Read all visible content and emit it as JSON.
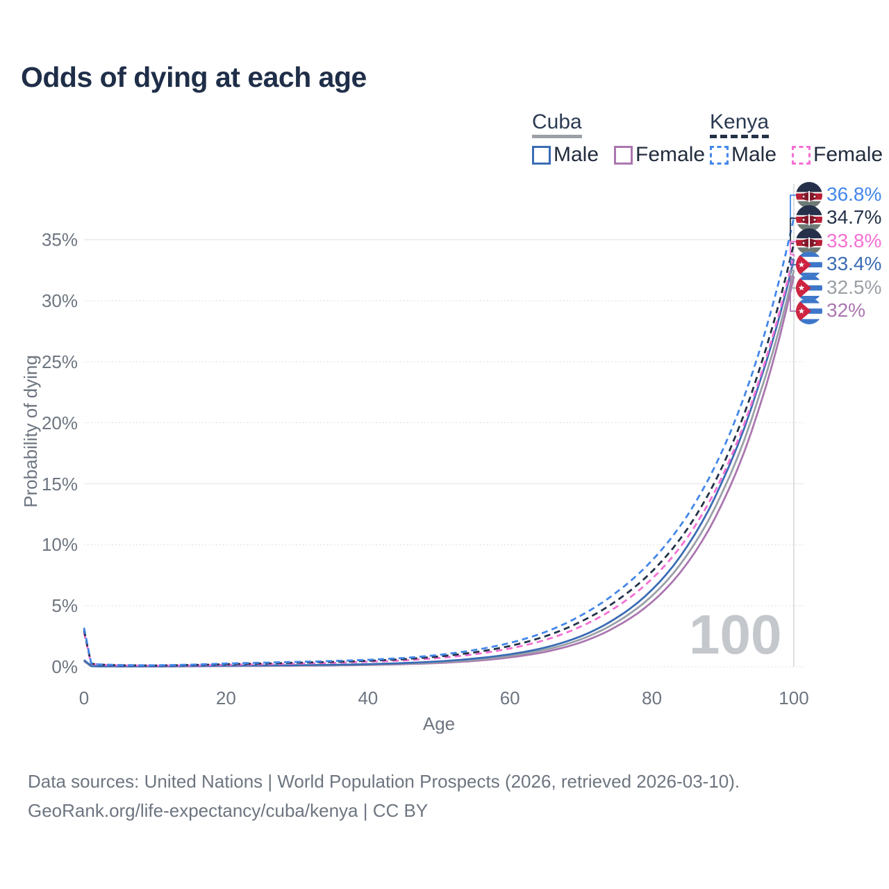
{
  "title": "Odds of dying at each age",
  "watermark_hover_age": "100",
  "colors": {
    "title": "#1f2e48",
    "axis_text": "#6d7580",
    "grid_dotted": "#cfd2d6",
    "grid_solid": "#e9ebee",
    "hover_line": "#d3d5d9",
    "watermark": "#c4c7cc"
  },
  "legend": {
    "groups": [
      {
        "label": "Cuba",
        "line_style": "solid",
        "underline_color": "#9aa0a6",
        "items": [
          {
            "label": "Male",
            "color": "#3a6cb4"
          },
          {
            "label": "Female",
            "color": "#ab76b0"
          }
        ]
      },
      {
        "label": "Kenya",
        "line_style": "dashed",
        "underline_color": "#243247",
        "items": [
          {
            "label": "Male",
            "color": "#4387e9"
          },
          {
            "label": "Female",
            "color": "#f56fd4"
          }
        ]
      }
    ]
  },
  "footer": {
    "line1": "Data sources: United Nations | World Population Prospects (2026, retrieved 2026-03-10).",
    "line2": "GeoRank.org/life-expectancy/cuba/kenya | CC BY"
  },
  "chart_data": {
    "type": "line",
    "title": "Odds of dying at each age",
    "xlabel": "Age",
    "ylabel": "Probability of dying",
    "xlim": [
      0,
      100
    ],
    "ylim_percent": [
      0,
      38
    ],
    "x_ticks": [
      0,
      20,
      40,
      60,
      80,
      100
    ],
    "y_tick_labels": [
      "0%",
      "5%",
      "10%",
      "15%",
      "20%",
      "25%",
      "30%",
      "35%"
    ],
    "grid": "horizontal",
    "legend_position": "top-right",
    "hover_age": 100,
    "ages": [
      0,
      1,
      2,
      5,
      10,
      15,
      20,
      25,
      30,
      35,
      40,
      45,
      50,
      55,
      60,
      65,
      70,
      75,
      80,
      85,
      90,
      95,
      100
    ],
    "series": [
      {
        "name": "Kenya Male",
        "country": "Kenya",
        "sex": "Male",
        "dashed": true,
        "flag": "kenya",
        "color": "#4387e9",
        "end_label": "36.8%",
        "end_value_percent": 36.8,
        "values_percent": [
          3.2,
          0.3,
          0.2,
          0.14,
          0.12,
          0.17,
          0.27,
          0.33,
          0.4,
          0.47,
          0.57,
          0.72,
          0.97,
          1.37,
          1.95,
          2.85,
          4.2,
          6.1,
          8.7,
          12.4,
          17.8,
          25.6,
          36.8
        ]
      },
      {
        "name": "Kenya Both sexes",
        "country": "Kenya",
        "sex": "Both",
        "dashed": true,
        "flag": "kenya",
        "color": "#243247",
        "end_label": "34.7%",
        "end_value_percent": 34.7,
        "values_percent": [
          3.0,
          0.27,
          0.18,
          0.12,
          0.1,
          0.14,
          0.21,
          0.27,
          0.33,
          0.4,
          0.49,
          0.62,
          0.84,
          1.18,
          1.7,
          2.5,
          3.7,
          5.4,
          7.8,
          11.3,
          16.5,
          24.1,
          34.7
        ]
      },
      {
        "name": "Kenya Female",
        "country": "Kenya",
        "sex": "Female",
        "dashed": true,
        "flag": "kenya",
        "color": "#f56fd4",
        "end_label": "33.8%",
        "end_value_percent": 33.8,
        "values_percent": [
          2.8,
          0.25,
          0.17,
          0.11,
          0.09,
          0.11,
          0.16,
          0.21,
          0.26,
          0.32,
          0.41,
          0.52,
          0.72,
          1.02,
          1.5,
          2.2,
          3.3,
          4.9,
          7.2,
          10.6,
          15.7,
          23.3,
          33.8
        ]
      },
      {
        "name": "Cuba Male",
        "country": "Cuba",
        "sex": "Male",
        "dashed": false,
        "flag": "cuba",
        "color": "#3a6cb4",
        "end_label": "33.4%",
        "end_value_percent": 33.4,
        "values_percent": [
          0.55,
          0.06,
          0.04,
          0.03,
          0.03,
          0.06,
          0.09,
          0.11,
          0.13,
          0.16,
          0.21,
          0.3,
          0.44,
          0.67,
          1.02,
          1.58,
          2.5,
          4.0,
          6.3,
          9.9,
          15.3,
          23.0,
          33.4
        ]
      },
      {
        "name": "Cuba Both sexes",
        "country": "Cuba",
        "sex": "Both",
        "dashed": false,
        "flag": "cuba",
        "color": "#9aa0a6",
        "end_label": "32.5%",
        "end_value_percent": 32.5,
        "values_percent": [
          0.5,
          0.05,
          0.035,
          0.028,
          0.027,
          0.05,
          0.07,
          0.09,
          0.11,
          0.14,
          0.18,
          0.25,
          0.37,
          0.57,
          0.89,
          1.4,
          2.25,
          3.65,
          5.8,
          9.2,
          14.4,
          22.0,
          32.5
        ]
      },
      {
        "name": "Cuba Female",
        "country": "Cuba",
        "sex": "Female",
        "dashed": false,
        "flag": "cuba",
        "color": "#ab76b0",
        "end_label": "32%",
        "end_value_percent": 32.0,
        "values_percent": [
          0.45,
          0.045,
          0.03,
          0.025,
          0.024,
          0.04,
          0.055,
          0.07,
          0.085,
          0.11,
          0.15,
          0.21,
          0.31,
          0.48,
          0.77,
          1.22,
          2.0,
          3.3,
          5.3,
          8.5,
          13.5,
          21.0,
          32.0
        ]
      }
    ]
  }
}
